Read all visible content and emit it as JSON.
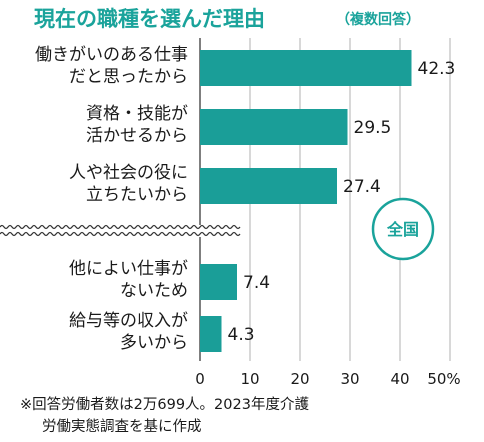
{
  "chart_data": {
    "type": "bar",
    "orientation": "horizontal",
    "title": "現在の職種を選んだ理由",
    "subtitle": "（複数回答）",
    "badge": "全国",
    "colors": {
      "bar": "#1a9e98",
      "accent": "#1aa39b",
      "grid": "#b0b0b0",
      "axis": "#555555"
    },
    "categories": [
      [
        "働きがいのある仕事",
        "だと思ったから"
      ],
      [
        "資格・技能が",
        "活かせるから"
      ],
      [
        "人や社会の役に",
        "立ちたいから"
      ],
      [
        "他によい仕事が",
        "ないため"
      ],
      [
        "給与等の収入が",
        "多いから"
      ]
    ],
    "values": [
      42.3,
      29.5,
      27.4,
      7.4,
      4.3
    ],
    "value_labels": [
      "42.3",
      "29.5",
      "27.4",
      "7.4",
      "4.3"
    ],
    "xlim": [
      0,
      50
    ],
    "xticks": [
      0,
      10,
      20,
      30,
      40,
      50
    ],
    "xtick_labels": [
      "0",
      "10",
      "20",
      "30",
      "40",
      "50%"
    ],
    "grid": true,
    "break_after_index": 2,
    "notes": [
      "※回答労働者数は2万699人。2023年度介護",
      "労働実態調査を基に作成"
    ]
  }
}
